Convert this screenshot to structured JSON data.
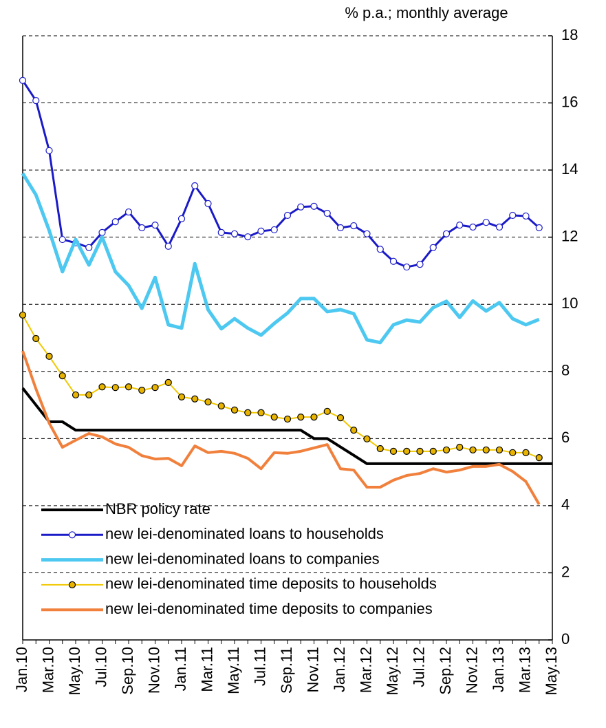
{
  "chart_data": {
    "type": "line",
    "y_label": "% p.a.; monthly average",
    "categories": [
      "Jan.10",
      null,
      "Mar.10",
      null,
      "May.10",
      null,
      "Jul.10",
      null,
      "Sep.10",
      null,
      "Nov.10",
      null,
      "Jan.11",
      null,
      "Mar.11",
      null,
      "May.11",
      null,
      "Jul.11",
      null,
      "Sep.11",
      null,
      "Nov.11",
      null,
      "Jan.12",
      null,
      "Mar.12",
      null,
      "May.12",
      null,
      "Jul.12",
      null,
      "Sep.12",
      null,
      "Nov.12",
      null,
      "Jan.13",
      null,
      "Mar.13",
      null,
      "May.13"
    ],
    "ylim": [
      0,
      18
    ],
    "yticks": [
      0,
      2,
      4,
      6,
      8,
      10,
      12,
      14,
      16,
      18
    ],
    "grid": true,
    "y_axis_side": "right",
    "legend": "lower left",
    "series": [
      {
        "name": "NBR policy rate",
        "color": "#000000",
        "width": 4,
        "marker": "none",
        "values": [
          7.5,
          7.0,
          6.5,
          6.5,
          6.25,
          6.25,
          6.25,
          6.25,
          6.25,
          6.25,
          6.25,
          6.25,
          6.25,
          6.25,
          6.25,
          6.25,
          6.25,
          6.25,
          6.25,
          6.25,
          6.25,
          6.25,
          6.0,
          6.0,
          5.75,
          5.5,
          5.25,
          5.25,
          5.25,
          5.25,
          5.25,
          5.25,
          5.25,
          5.25,
          5.25,
          5.25,
          5.25,
          5.25,
          5.25,
          5.25,
          5.25
        ]
      },
      {
        "name": "new lei-denominated loans to households",
        "color": "#1a1ac8",
        "width": 3,
        "marker": "circle",
        "marker_fill": "#ffffff",
        "values": [
          16.67,
          16.07,
          14.58,
          11.93,
          11.83,
          11.69,
          12.14,
          12.46,
          12.75,
          12.28,
          12.36,
          11.73,
          12.55,
          13.53,
          13.0,
          12.14,
          12.1,
          12.01,
          12.18,
          12.22,
          12.65,
          12.9,
          12.92,
          12.71,
          12.28,
          12.34,
          12.1,
          11.64,
          11.28,
          11.11,
          11.19,
          11.69,
          12.1,
          12.36,
          12.3,
          12.44,
          12.3,
          12.65,
          12.63,
          12.28,
          null
        ]
      },
      {
        "name": "new lei-denominated loans to companies",
        "color": "#4dc8f0",
        "width": 5,
        "marker": "none",
        "values": [
          13.9,
          13.26,
          12.2,
          10.97,
          11.93,
          11.17,
          12.0,
          10.97,
          10.56,
          9.88,
          10.8,
          9.39,
          9.29,
          11.21,
          9.84,
          9.27,
          9.57,
          9.29,
          9.08,
          9.43,
          9.74,
          10.17,
          10.17,
          9.78,
          9.84,
          9.72,
          8.94,
          8.86,
          9.39,
          9.53,
          9.47,
          9.9,
          10.09,
          9.61,
          10.1,
          9.8,
          10.05,
          9.57,
          9.39,
          9.55,
          null
        ]
      },
      {
        "name": "new lei-denominated time deposits to households",
        "color": "#f0c800",
        "width": 2,
        "marker": "circle",
        "marker_fill": "#e8b400",
        "values": [
          9.68,
          8.98,
          8.45,
          7.87,
          7.3,
          7.3,
          7.54,
          7.52,
          7.54,
          7.44,
          7.52,
          7.67,
          7.24,
          7.18,
          7.09,
          6.97,
          6.85,
          6.77,
          6.77,
          6.64,
          6.58,
          6.64,
          6.64,
          6.81,
          6.62,
          6.25,
          5.99,
          5.7,
          5.62,
          5.62,
          5.62,
          5.62,
          5.66,
          5.74,
          5.66,
          5.66,
          5.66,
          5.58,
          5.58,
          5.43,
          null
        ]
      },
      {
        "name": "new lei-denominated time deposits to companies",
        "color": "#f0803c",
        "width": 4,
        "marker": "none",
        "values": [
          8.61,
          7.48,
          6.46,
          5.74,
          5.95,
          6.15,
          6.05,
          5.84,
          5.74,
          5.49,
          5.39,
          5.41,
          5.19,
          5.78,
          5.58,
          5.62,
          5.56,
          5.41,
          5.1,
          5.58,
          5.56,
          5.62,
          5.72,
          5.82,
          5.1,
          5.06,
          4.55,
          4.55,
          4.76,
          4.9,
          4.96,
          5.1,
          5.0,
          5.06,
          5.17,
          5.17,
          5.23,
          5.02,
          4.72,
          4.04,
          null
        ]
      }
    ]
  }
}
